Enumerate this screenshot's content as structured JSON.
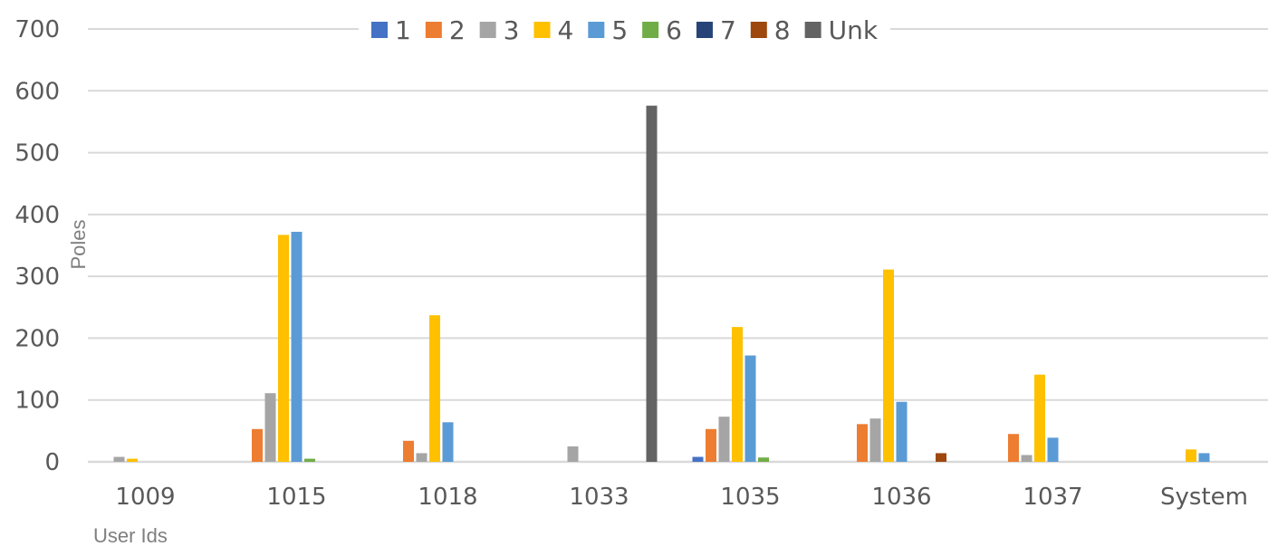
{
  "chart_data": {
    "type": "bar",
    "xlabel": "User Ids",
    "ylabel": "Poles",
    "ylim": [
      0,
      700
    ],
    "yticks": [
      0,
      100,
      200,
      300,
      400,
      500,
      600,
      700
    ],
    "grid": true,
    "legend_position": "top",
    "categories": [
      "1009",
      "1015",
      "1018",
      "1033",
      "1035",
      "1036",
      "1037",
      "System"
    ],
    "series": [
      {
        "name": "1",
        "color": "#4472c4",
        "values": [
          0,
          0,
          0,
          0,
          8,
          0,
          0,
          0
        ]
      },
      {
        "name": "2",
        "color": "#ed7d31",
        "values": [
          0,
          53,
          34,
          0,
          53,
          61,
          45,
          0
        ]
      },
      {
        "name": "3",
        "color": "#a5a5a5",
        "values": [
          8,
          111,
          14,
          25,
          73,
          70,
          11,
          0
        ]
      },
      {
        "name": "4",
        "color": "#ffc000",
        "values": [
          5,
          367,
          237,
          0,
          218,
          311,
          141,
          20
        ]
      },
      {
        "name": "5",
        "color": "#5b9bd5",
        "values": [
          0,
          372,
          64,
          0,
          172,
          97,
          39,
          14
        ]
      },
      {
        "name": "6",
        "color": "#70ad47",
        "values": [
          0,
          5,
          0,
          0,
          7,
          0,
          0,
          0
        ]
      },
      {
        "name": "7",
        "color": "#264478",
        "values": [
          0,
          0,
          0,
          0,
          0,
          0,
          0,
          0
        ]
      },
      {
        "name": "8",
        "color": "#9e480e",
        "values": [
          0,
          0,
          0,
          0,
          0,
          14,
          0,
          0
        ]
      },
      {
        "name": "Unk",
        "color": "#636363",
        "values": [
          0,
          0,
          0,
          576,
          0,
          0,
          0,
          0
        ]
      }
    ]
  }
}
